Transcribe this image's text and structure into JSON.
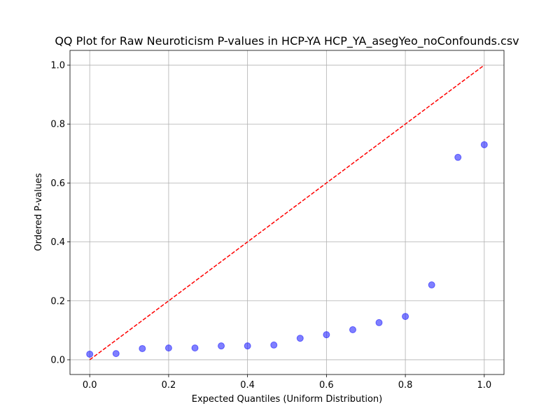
{
  "chart_data": {
    "type": "scatter",
    "title": "QQ Plot for Raw Neuroticism P-values in HCP-YA HCP_YA_asegYeo_noConfounds.csv",
    "xlabel": "Expected Quantiles (Uniform Distribution)",
    "ylabel": "Ordered P-values",
    "xlim": [
      -0.05,
      1.05
    ],
    "ylim": [
      -0.05,
      1.05
    ],
    "xticks": [
      0.0,
      0.2,
      0.4,
      0.6,
      0.8,
      1.0
    ],
    "yticks": [
      0.0,
      0.2,
      0.4,
      0.6,
      0.8,
      1.0
    ],
    "xtick_labels": [
      "0.0",
      "0.2",
      "0.4",
      "0.6",
      "0.8",
      "1.0"
    ],
    "ytick_labels": [
      "0.0",
      "0.2",
      "0.4",
      "0.6",
      "0.8",
      "1.0"
    ],
    "grid": true,
    "series": [
      {
        "kind": "points",
        "color": "#0000ff",
        "x": [
          0.0,
          0.0667,
          0.1333,
          0.2,
          0.2667,
          0.3333,
          0.4,
          0.4667,
          0.5333,
          0.6,
          0.6667,
          0.7333,
          0.8,
          0.8667,
          0.9333,
          1.0
        ],
        "y": [
          0.019,
          0.021,
          0.038,
          0.04,
          0.04,
          0.047,
          0.047,
          0.05,
          0.073,
          0.085,
          0.102,
          0.126,
          0.147,
          0.254,
          0.687,
          0.73
        ]
      },
      {
        "kind": "reference-line",
        "color": "#ff0000",
        "x": [
          0.0,
          1.0
        ],
        "y": [
          0.0,
          1.0
        ]
      }
    ]
  }
}
